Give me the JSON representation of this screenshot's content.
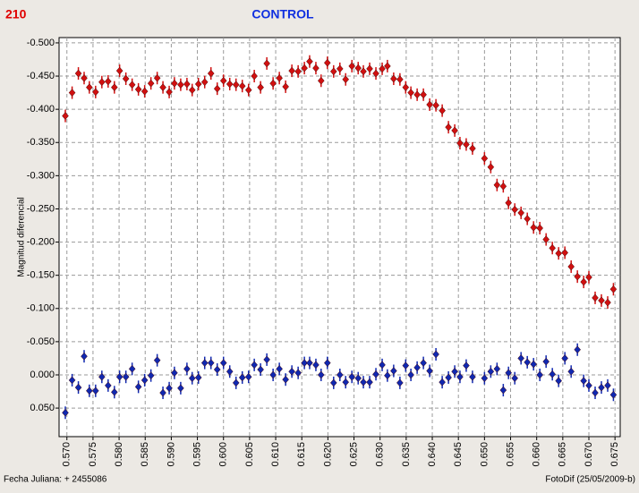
{
  "header": {
    "left_label": "210",
    "footer_left": "Fecha Juliana:  + 2455086",
    "footer_right": "FotoDif (25/05/2009-b)"
  },
  "chart_data": {
    "type": "scatter",
    "title": "CONTROL",
    "y_label": "Magnitud diferencial",
    "xlim": [
      0.5685,
      0.676
    ],
    "ylim": [
      0.093,
      -0.508
    ],
    "xticks": [
      {
        "value": 0.57,
        "label": "0.570"
      },
      {
        "value": 0.575,
        "label": "0.575"
      },
      {
        "value": 0.58,
        "label": "0.580"
      },
      {
        "value": 0.585,
        "label": "0.585"
      },
      {
        "value": 0.59,
        "label": "0.590"
      },
      {
        "value": 0.595,
        "label": "0.595"
      },
      {
        "value": 0.6,
        "label": "0.600"
      },
      {
        "value": 0.605,
        "label": "0.605"
      },
      {
        "value": 0.61,
        "label": "0.610"
      },
      {
        "value": 0.615,
        "label": "0.615"
      },
      {
        "value": 0.62,
        "label": "0.620"
      },
      {
        "value": 0.625,
        "label": "0.625"
      },
      {
        "value": 0.63,
        "label": "0.630"
      },
      {
        "value": 0.635,
        "label": "0.635"
      },
      {
        "value": 0.64,
        "label": "0.640"
      },
      {
        "value": 0.645,
        "label": "0.645"
      },
      {
        "value": 0.65,
        "label": "0.650"
      },
      {
        "value": 0.655,
        "label": "0.655"
      },
      {
        "value": 0.66,
        "label": "0.660"
      },
      {
        "value": 0.665,
        "label": "0.665"
      },
      {
        "value": 0.67,
        "label": "0.670"
      },
      {
        "value": 0.675,
        "label": "0.675"
      }
    ],
    "yticks": [
      {
        "value": -0.5,
        "label": "-0.500"
      },
      {
        "value": -0.45,
        "label": "-0.450"
      },
      {
        "value": -0.4,
        "label": "-0.400"
      },
      {
        "value": -0.35,
        "label": "-0.350"
      },
      {
        "value": -0.3,
        "label": "-0.300"
      },
      {
        "value": -0.25,
        "label": "-0.250"
      },
      {
        "value": -0.2,
        "label": "-0.200"
      },
      {
        "value": -0.15,
        "label": "-0.150"
      },
      {
        "value": -0.1,
        "label": "-0.100"
      },
      {
        "value": -0.05,
        "label": "-0.050"
      },
      {
        "value": 0,
        "label": "0.000"
      },
      {
        "value": 0.05,
        "label": "0.050"
      }
    ],
    "grid": true,
    "x": [
      0.5697,
      0.571,
      0.5722,
      0.5733,
      0.5743,
      0.5755,
      0.5767,
      0.5779,
      0.5791,
      0.5801,
      0.5813,
      0.5825,
      0.5837,
      0.5849,
      0.5861,
      0.5873,
      0.5884,
      0.5896,
      0.5906,
      0.5918,
      0.593,
      0.594,
      0.5952,
      0.5964,
      0.5976,
      0.5988,
      0.6,
      0.6012,
      0.6024,
      0.6036,
      0.6048,
      0.6059,
      0.6071,
      0.6083,
      0.6095,
      0.6107,
      0.6119,
      0.6131,
      0.6143,
      0.6155,
      0.6165,
      0.6177,
      0.6187,
      0.6199,
      0.6211,
      0.6223,
      0.6234,
      0.6246,
      0.6258,
      0.6268,
      0.628,
      0.6292,
      0.6304,
      0.6314,
      0.6326,
      0.6338,
      0.6349,
      0.6359,
      0.6371,
      0.6383,
      0.6395,
      0.6407,
      0.6419,
      0.6431,
      0.6443,
      0.6453,
      0.6465,
      0.6477,
      0.65,
      0.6512,
      0.6524,
      0.6536,
      0.6546,
      0.6558,
      0.657,
      0.6582,
      0.6594,
      0.6606,
      0.6618,
      0.663,
      0.6642,
      0.6654,
      0.6666,
      0.6678,
      0.669,
      0.67,
      0.6712,
      0.6724,
      0.6736,
      0.6747
    ],
    "series": [
      {
        "color": "#d01010",
        "values": [
          -0.39,
          -0.425,
          -0.454,
          -0.447,
          -0.433,
          -0.426,
          -0.441,
          -0.442,
          -0.433,
          -0.458,
          -0.446,
          -0.437,
          -0.43,
          -0.427,
          -0.439,
          -0.447,
          -0.433,
          -0.426,
          -0.439,
          -0.437,
          -0.438,
          -0.429,
          -0.438,
          -0.441,
          -0.454,
          -0.431,
          -0.443,
          -0.438,
          -0.437,
          -0.435,
          -0.429,
          -0.45,
          -0.433,
          -0.469,
          -0.439,
          -0.447,
          -0.434,
          -0.458,
          -0.457,
          -0.462,
          -0.472,
          -0.462,
          -0.443,
          -0.47,
          -0.457,
          -0.461,
          -0.445,
          -0.465,
          -0.462,
          -0.457,
          -0.461,
          -0.454,
          -0.461,
          -0.465,
          -0.446,
          -0.445,
          -0.433,
          -0.425,
          -0.422,
          -0.422,
          -0.407,
          -0.406,
          -0.398,
          -0.373,
          -0.368,
          -0.349,
          -0.347,
          -0.341,
          -0.326,
          -0.313,
          -0.286,
          -0.284,
          -0.259,
          -0.249,
          -0.244,
          -0.235,
          -0.222,
          -0.221,
          -0.204,
          -0.191,
          -0.183,
          -0.184,
          -0.163,
          -0.148,
          -0.14,
          -0.147,
          -0.116,
          -0.112,
          -0.109,
          -0.129
        ]
      },
      {
        "color": "#1028b0",
        "values": [
          0.057,
          0.008,
          0.019,
          -0.028,
          0.024,
          0.024,
          0.003,
          0.016,
          0.026,
          0.003,
          0.003,
          -0.009,
          0.018,
          0.008,
          0.001,
          -0.022,
          0.027,
          0.02,
          -0.003,
          0.02,
          -0.009,
          0.005,
          0.004,
          -0.018,
          -0.018,
          -0.008,
          -0.018,
          -0.005,
          0.012,
          0.004,
          0.003,
          -0.015,
          -0.008,
          -0.023,
          0.0,
          -0.009,
          0.007,
          -0.005,
          -0.003,
          -0.018,
          -0.018,
          -0.015,
          0.0,
          -0.018,
          0.012,
          0.0,
          0.011,
          0.003,
          0.005,
          0.011,
          0.011,
          -0.001,
          -0.015,
          0.001,
          -0.006,
          0.012,
          -0.014,
          0.0,
          -0.011,
          -0.018,
          -0.006,
          -0.031,
          0.011,
          0.004,
          -0.005,
          0.003,
          -0.014,
          0.003,
          0.005,
          -0.005,
          -0.009,
          0.023,
          -0.003,
          0.005,
          -0.025,
          -0.019,
          -0.016,
          0.0,
          -0.02,
          -0.001,
          0.009,
          -0.025,
          -0.005,
          -0.038,
          0.009,
          0.016,
          0.027,
          0.019,
          0.016,
          0.03
        ]
      }
    ]
  }
}
